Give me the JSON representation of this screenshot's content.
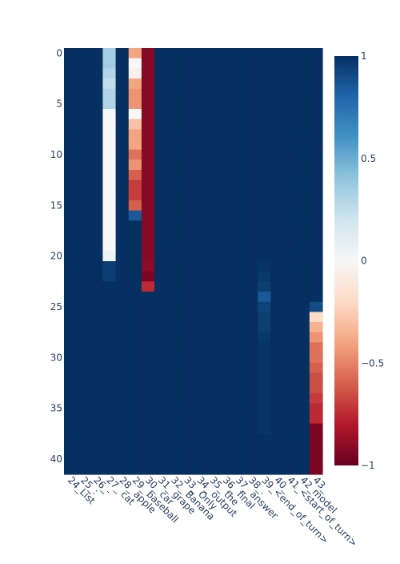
{
  "chart_data": {
    "type": "heatmap",
    "title": "",
    "xlabel": "",
    "ylabel": "",
    "x_categories": [
      "24_List",
      "25_:",
      "26_-",
      "27_cat",
      "28_apple",
      "29_baseball",
      "30_car",
      "31_grape",
      "32_Banana",
      "33_Only",
      "34_output",
      "35_the",
      "36_final",
      "37_answer",
      "38_.",
      "39_<end_of_turn>",
      "40_\\n",
      "41_<start_of_turn>",
      "42_model",
      "43_\\n"
    ],
    "x_tick_labels": [
      "24_List",
      "25_:",
      "26_-",
      "27_ cat",
      "28_ apple",
      "29_ baseball",
      "30_ car",
      "31_ grape",
      "32_ Banana",
      "33_ Only",
      "34_ output",
      "35_ the",
      "36_ final",
      "37_ answer",
      "38_.",
      "39_<end_of_turn>",
      "40_",
      "41_<start_of_turn>",
      "42_model",
      "43_"
    ],
    "y_tick_values": [
      0,
      5,
      10,
      15,
      20,
      25,
      30,
      35,
      40
    ],
    "y_range": [
      0,
      41
    ],
    "y_reversed": true,
    "colorscale": "RdBu",
    "zmin": -1,
    "zmax": 1,
    "colorbar_ticks": [
      {
        "value": 1,
        "label": "1"
      },
      {
        "value": 0.5,
        "label": "0.5"
      },
      {
        "value": 0,
        "label": "0"
      },
      {
        "value": -0.5,
        "label": "−0.5"
      },
      {
        "value": -1,
        "label": "−1"
      }
    ],
    "default_value": 1,
    "columns": [
      {
        "name": "27_cat",
        "values": [
          0.35,
          0.35,
          0.3,
          0.25,
          0.3,
          0.3,
          0,
          0,
          0,
          0,
          0,
          0,
          0,
          0,
          0,
          0,
          0,
          0,
          0,
          0,
          0.05,
          0.95,
          0.95,
          1,
          1,
          1,
          1,
          1,
          1,
          1,
          1,
          1,
          1,
          1,
          1,
          1,
          1,
          1,
          1,
          1,
          1,
          1
        ]
      },
      {
        "name": "29_baseball",
        "values": [
          -0.4,
          0,
          -0.05,
          -0.4,
          -0.45,
          -0.45,
          0,
          -0.3,
          -0.4,
          -0.4,
          -0.55,
          -0.45,
          -0.6,
          -0.7,
          -0.7,
          -0.6,
          0.85,
          1,
          1,
          1,
          1,
          1,
          1,
          1,
          1,
          1,
          1,
          1,
          1,
          1,
          1,
          1,
          1,
          1,
          1,
          1,
          1,
          1,
          1,
          1,
          1,
          1
        ]
      },
      {
        "name": "30_car",
        "values": [
          -0.92,
          -0.92,
          -0.92,
          -0.92,
          -0.92,
          -0.92,
          -0.92,
          -0.92,
          -0.92,
          -0.92,
          -0.92,
          -0.92,
          -0.92,
          -0.92,
          -0.92,
          -0.92,
          -0.92,
          -0.92,
          -0.92,
          -0.92,
          -0.92,
          -0.9,
          -0.95,
          -0.75,
          1,
          1,
          1,
          1,
          1,
          1,
          1,
          1,
          1,
          1,
          1,
          1,
          1,
          1,
          1,
          1,
          1,
          1
        ]
      },
      {
        "name": "39_<end_of_turn>",
        "values": [
          1,
          1,
          1,
          1,
          1,
          1,
          1,
          1,
          1,
          1,
          1,
          1,
          1,
          1,
          1,
          1,
          1,
          1,
          1,
          1,
          1,
          0.98,
          0.97,
          0.95,
          0.85,
          0.93,
          0.95,
          0.95,
          0.97,
          0.98,
          0.98,
          0.98,
          0.98,
          0.98,
          0.98,
          0.98,
          0.98,
          0.98,
          1,
          1,
          1,
          1
        ]
      },
      {
        "name": "43_\\n",
        "values": [
          1,
          1,
          1,
          1,
          1,
          1,
          1,
          1,
          1,
          1,
          1,
          1,
          1,
          1,
          1,
          1,
          1,
          1,
          1,
          1,
          1,
          1,
          1,
          1,
          1,
          0.9,
          -0.2,
          -0.35,
          -0.45,
          -0.55,
          -0.55,
          -0.6,
          -0.65,
          -0.65,
          -0.7,
          -0.75,
          -0.75,
          -0.95,
          -0.95,
          -0.95,
          -0.95,
          -0.95
        ]
      }
    ]
  }
}
